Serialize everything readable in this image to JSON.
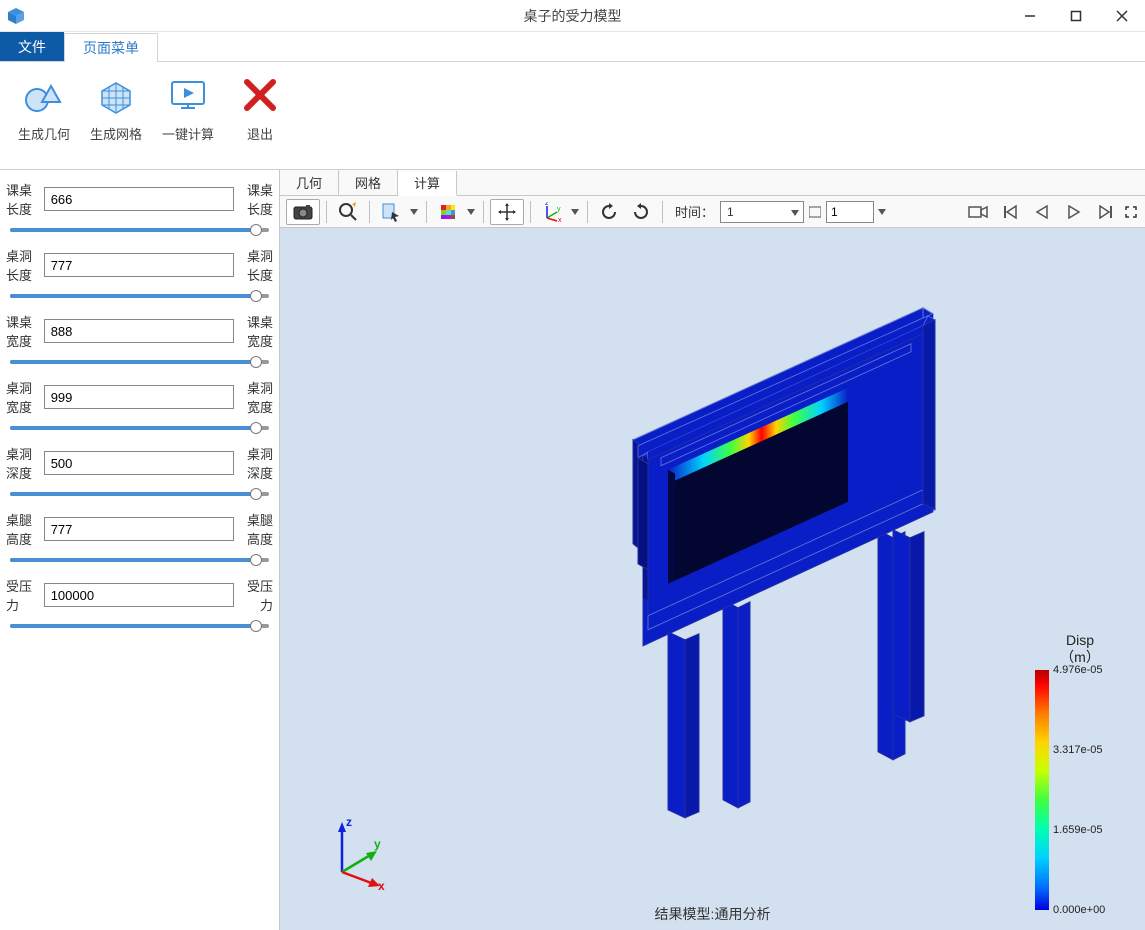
{
  "window": {
    "title": "桌子的受力模型",
    "app_icon_color": "#3b8fde"
  },
  "menu_tabs": {
    "file": "文件",
    "page": "页面菜单"
  },
  "ribbon": [
    {
      "id": "gen-geometry",
      "label": "生成几何"
    },
    {
      "id": "gen-mesh",
      "label": "生成网格"
    },
    {
      "id": "one-click-calc",
      "label": "一键计算"
    },
    {
      "id": "exit",
      "label": "退出"
    }
  ],
  "params": [
    {
      "id": "desk-length",
      "label_left": "课桌长度",
      "value": "666",
      "label_right": "课桌长度",
      "slider_pct": 95
    },
    {
      "id": "hole-length",
      "label_left": "桌洞长度",
      "value": "777",
      "label_right": "桌洞长度",
      "slider_pct": 95
    },
    {
      "id": "desk-width",
      "label_left": "课桌宽度",
      "value": "888",
      "label_right": "课桌宽度",
      "slider_pct": 95
    },
    {
      "id": "hole-width",
      "label_left": "桌洞宽度",
      "value": "999",
      "label_right": "桌洞宽度",
      "slider_pct": 95
    },
    {
      "id": "hole-depth",
      "label_left": "桌洞深度",
      "value": "500",
      "label_right": "桌洞深度",
      "slider_pct": 95
    },
    {
      "id": "leg-height",
      "label_left": "桌腿高度",
      "value": "777",
      "label_right": "桌腿高度",
      "slider_pct": 95
    },
    {
      "id": "pressure",
      "label_left": "受压力",
      "value": "100000",
      "label_right": "受压力",
      "slider_pct": 95
    }
  ],
  "view_tabs": {
    "geometry": "几何",
    "mesh": "网格",
    "calc": "计算",
    "active": "calc"
  },
  "viewer_toolbar": {
    "time_label": "时间：",
    "time_value": "1",
    "step_value": "1"
  },
  "legend": {
    "title_l1": "Disp",
    "title_l2": "（m）",
    "max": "4.976e-05",
    "mid_high": "3.317e-05",
    "mid_low": "1.659e-05",
    "min": "0.000e+00",
    "colors": {
      "c0": "#b50000",
      "c1": "#ff0000",
      "c2": "#ff7a00",
      "c3": "#ffd400",
      "c4": "#c8ff00",
      "c5": "#40ff40",
      "c6": "#00ffb0",
      "c7": "#00d4ff",
      "c8": "#0074ff",
      "c9": "#0000e0"
    }
  },
  "model": {
    "body_color": "#0a1ec8",
    "edge_color": "#2030a0",
    "edge_color_light": "#6478d8",
    "background": "#d2e0ef"
  },
  "status_text": "结果模型:通用分析",
  "triad": {
    "x_color": "#e01010",
    "y_color": "#10b010",
    "z_color": "#1020e0"
  }
}
